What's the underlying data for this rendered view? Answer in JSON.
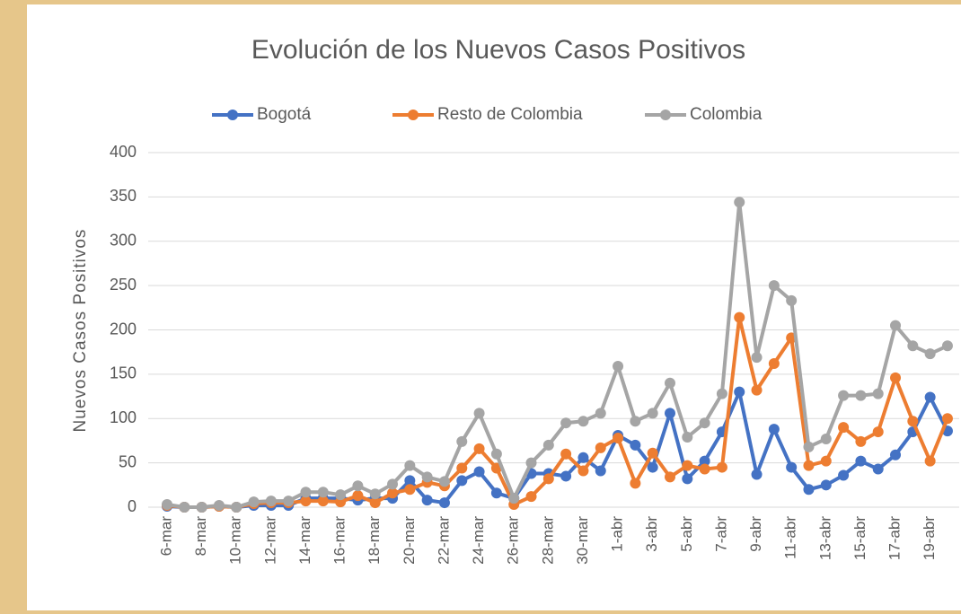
{
  "chart_data": {
    "type": "line",
    "title": "Evolución de los Nuevos Casos Positivos",
    "y_label": "Nuevos Casos Positivos",
    "categories": [
      "6-mar",
      null,
      "8-mar",
      null,
      "10-mar",
      null,
      "12-mar",
      null,
      "14-mar",
      null,
      "16-mar",
      null,
      "18-mar",
      null,
      "20-mar",
      null,
      "22-mar",
      null,
      "24-mar",
      null,
      "26-mar",
      null,
      "28-mar",
      null,
      "30-mar",
      null,
      "1-abr",
      null,
      "3-abr",
      null,
      "5-abr",
      null,
      "7-abr",
      null,
      "9-abr",
      null,
      "11-abr",
      null,
      "13-abr",
      null,
      "15-abr",
      null,
      "17-abr",
      null,
      "19-abr",
      null
    ],
    "series": [
      {
        "name": "Bogotá",
        "color": "#4472c4",
        "values": [
          1,
          0,
          0,
          1,
          0,
          2,
          2,
          2,
          10,
          10,
          10,
          8,
          10,
          10,
          30,
          8,
          5,
          30,
          40,
          16,
          10,
          38,
          38,
          35,
          56,
          41,
          81,
          70,
          45,
          106,
          32,
          52,
          85,
          130,
          37,
          88,
          45,
          20,
          25,
          36,
          52,
          43,
          59,
          85,
          124,
          86
        ]
      },
      {
        "name": "Resto de Colombia",
        "color": "#ed7d31",
        "values": [
          2,
          0,
          0,
          1,
          0,
          4,
          5,
          5,
          7,
          7,
          6,
          13,
          5,
          16,
          20,
          28,
          24,
          44,
          66,
          44,
          3,
          12,
          32,
          60,
          41,
          67,
          78,
          27,
          61,
          34,
          47,
          43,
          45,
          214,
          132,
          162,
          191,
          47,
          52,
          90,
          74,
          85,
          146,
          97,
          52,
          100
        ]
      },
      {
        "name": "Colombia",
        "color": "#a5a5a5",
        "values": [
          3,
          0,
          0,
          2,
          0,
          6,
          7,
          7,
          17,
          17,
          14,
          24,
          15,
          26,
          47,
          34,
          29,
          74,
          106,
          60,
          10,
          50,
          70,
          95,
          97,
          106,
          159,
          97,
          106,
          140,
          79,
          95,
          128,
          344,
          169,
          250,
          233,
          68,
          77,
          126,
          126,
          128,
          205,
          182,
          173,
          182
        ]
      }
    ],
    "ylim": [
      0,
      400
    ],
    "yticks": [
      0,
      50,
      100,
      150,
      200,
      250,
      300,
      350,
      400
    ],
    "grid": true,
    "legend": "top"
  }
}
